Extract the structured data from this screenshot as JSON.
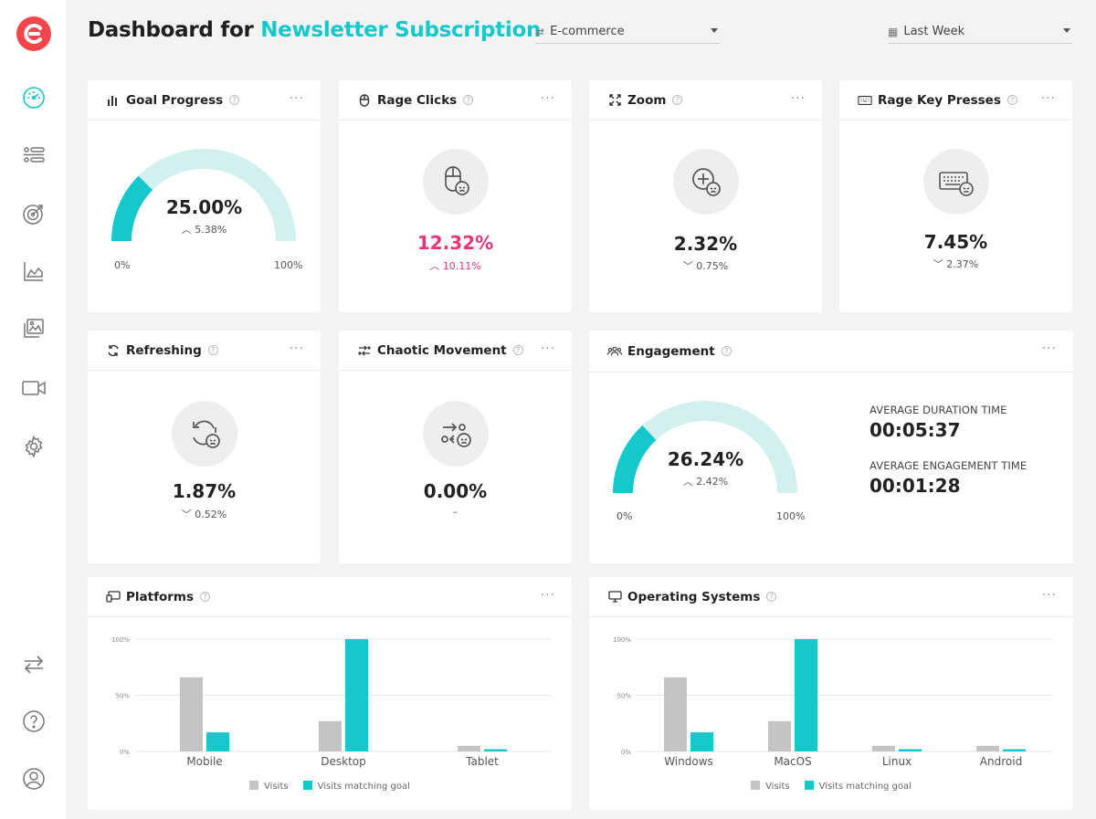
{
  "header": {
    "title_prefix": "Dashboard for ",
    "title_accent": "Newsletter Subscription",
    "category": {
      "icon": "transfer-icon",
      "value": "E-commerce"
    },
    "period": {
      "icon": "calendar-icon",
      "value": "Last Week"
    }
  },
  "colors": {
    "accent": "#15c8cc",
    "accent_light": "#d3f0f0",
    "visits": "#c4c4c4",
    "pink": "#e8347a"
  },
  "sidebar": {
    "items": [
      {
        "name": "dashboard",
        "icon": "speedometer-icon",
        "active": true
      },
      {
        "name": "list",
        "icon": "list-toggle-icon"
      },
      {
        "name": "goals",
        "icon": "target-icon"
      },
      {
        "name": "analytics",
        "icon": "area-chart-icon"
      },
      {
        "name": "heatmaps",
        "icon": "gallery-icon"
      },
      {
        "name": "recordings",
        "icon": "video-camera-icon"
      },
      {
        "name": "settings",
        "icon": "gear-icon"
      }
    ],
    "bottom": [
      {
        "name": "switch",
        "icon": "arrows-swap-icon"
      },
      {
        "name": "help",
        "icon": "question-icon"
      },
      {
        "name": "account",
        "icon": "user-circle-icon"
      }
    ]
  },
  "cards": {
    "goal_progress": {
      "title": "Goal Progress",
      "value": "25.00%",
      "delta": "5.38%",
      "direction": "up",
      "min": "0%",
      "max": "100%",
      "fraction": 0.25
    },
    "rage_clicks": {
      "title": "Rage Clicks",
      "value": "12.32%",
      "delta": "10.11%",
      "direction": "up"
    },
    "zoom": {
      "title": "Zoom",
      "value": "2.32%",
      "delta": "0.75%",
      "direction": "down"
    },
    "rage_key_presses": {
      "title": "Rage Key Presses",
      "value": "7.45%",
      "delta": "2.37%",
      "direction": "down"
    },
    "refreshing": {
      "title": "Refreshing",
      "value": "1.87%",
      "delta": "0.52%",
      "direction": "down"
    },
    "chaotic_movement": {
      "title": "Chaotic Movement",
      "value": "0.00%",
      "delta": "–"
    },
    "engagement": {
      "title": "Engagement",
      "value": "26.24%",
      "delta": "2.42%",
      "direction": "up",
      "min": "0%",
      "max": "100%",
      "fraction": 0.2624,
      "avg_duration_label": "AVERAGE DURATION TIME",
      "avg_duration": "00:05:37",
      "avg_engagement_label": "AVERAGE ENGAGEMENT TIME",
      "avg_engagement": "00:01:28"
    },
    "platforms": {
      "title": "Platforms"
    },
    "operating_systems": {
      "title": "Operating Systems"
    }
  },
  "chart_data": [
    {
      "type": "bar",
      "title": "Platforms",
      "categories": [
        "Mobile",
        "Desktop",
        "Tablet"
      ],
      "series": [
        {
          "name": "Visits",
          "values": [
            66,
            27,
            5
          ]
        },
        {
          "name": "Visits matching goal",
          "values": [
            17,
            100,
            2
          ]
        }
      ],
      "yticks": [
        "0%",
        "50%",
        "100%"
      ],
      "ylim": [
        0,
        100
      ]
    },
    {
      "type": "bar",
      "title": "Operating Systems",
      "categories": [
        "Windows",
        "MacOS",
        "Linux",
        "Android"
      ],
      "series": [
        {
          "name": "Visits",
          "values": [
            66,
            27,
            5,
            5
          ]
        },
        {
          "name": "Visits matching goal",
          "values": [
            17,
            100,
            2,
            2
          ]
        }
      ],
      "yticks": [
        "0%",
        "50%",
        "100%"
      ],
      "ylim": [
        0,
        100
      ]
    }
  ]
}
